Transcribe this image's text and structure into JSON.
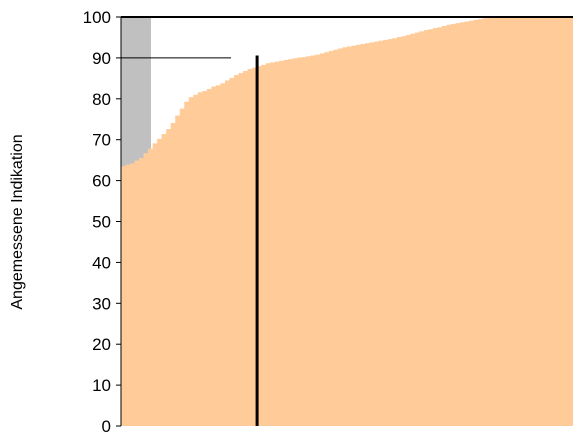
{
  "chart_data": {
    "type": "area",
    "title": "",
    "xlabel": "",
    "ylabel": "Angemessene Indikation",
    "ylim": [
      0,
      100
    ],
    "yticks": [
      0,
      10,
      20,
      30,
      40,
      50,
      60,
      70,
      80,
      90,
      100
    ],
    "ytick_labels": [
      "0",
      "10",
      "20",
      "30",
      "40",
      "50",
      "60",
      "70",
      "80",
      "90",
      "100"
    ],
    "grid": false,
    "legend": "none",
    "reference_line": {
      "y": 90
    },
    "median_marker": {
      "rank_fraction": 0.3,
      "value": 90.6
    },
    "series": [
      {
        "values": [
          63.5,
          63.9,
          64.2,
          64.9,
          65.5,
          66.7,
          67.8,
          69.1,
          70.2,
          71.4,
          72.6,
          74.1,
          75.9,
          77.6,
          79.3,
          80.4,
          81.0,
          81.6,
          81.9,
          82.4,
          83.0,
          83.3,
          83.8,
          84.5,
          85.1,
          85.8,
          86.3,
          86.8,
          87.3,
          87.6,
          88.0,
          88.3,
          88.7,
          88.9,
          89.1,
          89.3,
          89.5,
          89.7,
          89.9,
          90.1,
          90.2,
          90.4,
          90.6,
          90.8,
          91.1,
          91.4,
          91.7,
          92.0,
          92.3,
          92.6,
          92.8,
          93.0,
          93.2,
          93.4,
          93.6,
          93.8,
          94.0,
          94.2,
          94.4,
          94.6,
          94.8,
          95.1,
          95.3,
          95.6,
          95.9,
          96.2,
          96.5,
          96.8,
          97.0,
          97.3,
          97.5,
          97.8,
          98.1,
          98.3,
          98.5,
          98.7,
          98.9,
          99.1,
          99.3,
          99.5,
          99.7,
          99.9,
          100,
          100,
          100,
          100,
          100,
          100,
          100,
          100,
          100,
          100,
          100,
          100,
          100,
          100,
          100,
          100,
          100,
          100
        ]
      }
    ],
    "colors": {
      "fill": "#FFCC99",
      "secondary_fill": "#C0C0C0",
      "lines": "#000000"
    }
  }
}
